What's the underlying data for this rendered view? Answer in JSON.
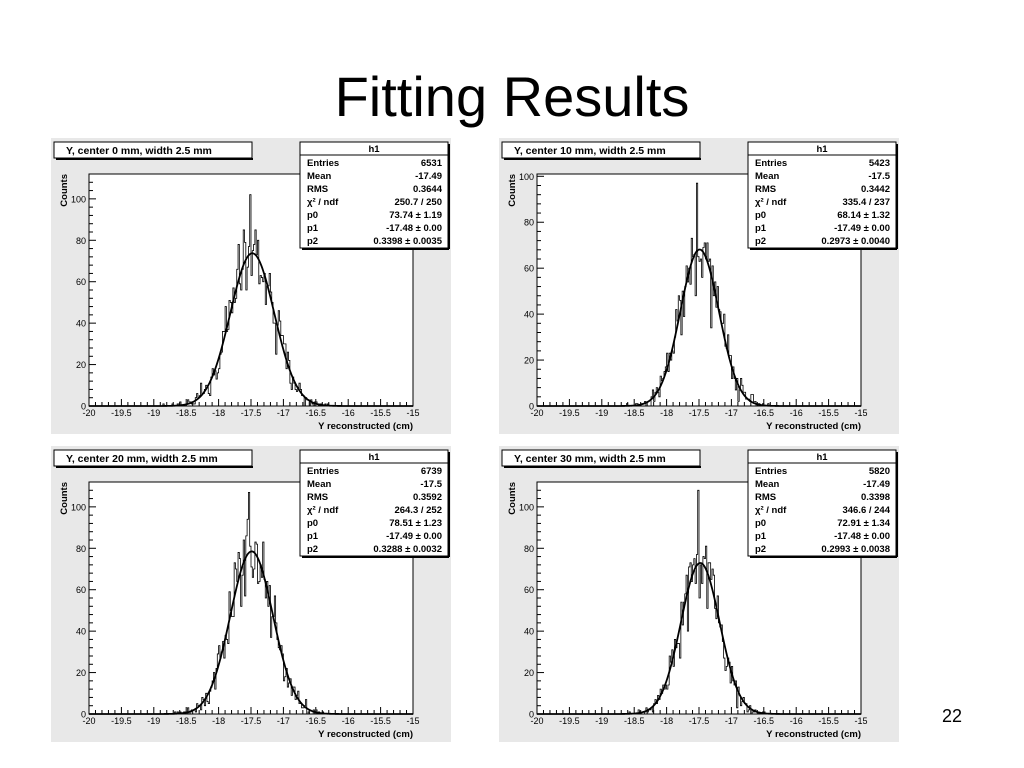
{
  "slide": {
    "title": "Fitting Results",
    "page_number": "22"
  },
  "colors": {
    "frame_background": "#e8e8e8",
    "plot_background": "#ffffff",
    "line": "#000000"
  },
  "chart_data": [
    {
      "type": "histogram",
      "title": "Y, center 0 mm, width 2.5 mm",
      "xlabel": "Y reconstructed (cm)",
      "ylabel": "Counts",
      "xlim": [
        -20,
        -15
      ],
      "ylim": [
        0,
        112
      ],
      "x_ticks": [
        -20,
        -19.5,
        -19,
        -18.5,
        -18,
        -17.5,
        -17,
        -16.5,
        -16,
        -15.5,
        -15
      ],
      "x_tick_labels": [
        "-20",
        "-19.5",
        "-19",
        "-18.5",
        "-18",
        "-17.5",
        "-17",
        "-16.5",
        "-16",
        "-15.5",
        "-15"
      ],
      "y_ticks": [
        0,
        20,
        40,
        60,
        80,
        100
      ],
      "y_tick_labels": [
        "0",
        "20",
        "40",
        "60",
        "80",
        "100"
      ],
      "stats_title": "h1",
      "stats": [
        {
          "label": "Entries",
          "value": "6531"
        },
        {
          "label": "Mean",
          "value": "-17.49"
        },
        {
          "label": "RMS",
          "value": "0.3644"
        },
        {
          "label": "χ² / ndf",
          "value": "250.7 / 250"
        },
        {
          "label": "p0",
          "value": "73.74 ± 1.19"
        },
        {
          "label": "p1",
          "value": "-17.48 ± 0.00"
        },
        {
          "label": "p2",
          "value": "0.3398 ± 0.0035"
        }
      ],
      "fit": {
        "function": "gaus",
        "constant": 73.74,
        "mean": -17.48,
        "sigma": 0.3398
      },
      "bins": {
        "x_min": -20,
        "x_max": -15,
        "count": 250
      },
      "peak_counts": 102
    },
    {
      "type": "histogram",
      "title": "Y, center 10 mm, width 2.5 mm",
      "xlabel": "Y reconstructed (cm)",
      "ylabel": "Counts",
      "xlim": [
        -20,
        -15
      ],
      "ylim": [
        0,
        101
      ],
      "x_ticks": [
        -20,
        -19.5,
        -19,
        -18.5,
        -18,
        -17.5,
        -17,
        -16.5,
        -16,
        -15.5,
        -15
      ],
      "x_tick_labels": [
        "-20",
        "-19.5",
        "-19",
        "-18.5",
        "-18",
        "-17.5",
        "-17",
        "-16.5",
        "-16",
        "-15.5",
        "-15"
      ],
      "y_ticks": [
        0,
        20,
        40,
        60,
        80,
        100
      ],
      "y_tick_labels": [
        "0",
        "20",
        "40",
        "60",
        "80",
        "100"
      ],
      "stats_title": "h1",
      "stats": [
        {
          "label": "Entries",
          "value": "5423"
        },
        {
          "label": "Mean",
          "value": "-17.5"
        },
        {
          "label": "RMS",
          "value": "0.3442"
        },
        {
          "label": "χ² / ndf",
          "value": "335.4 / 237"
        },
        {
          "label": "p0",
          "value": "68.14 ± 1.32"
        },
        {
          "label": "p1",
          "value": "-17.49 ± 0.00"
        },
        {
          "label": "p2",
          "value": "0.2973 ± 0.0040"
        }
      ],
      "fit": {
        "function": "gaus",
        "constant": 68.14,
        "mean": -17.49,
        "sigma": 0.2973
      },
      "bins": {
        "x_min": -20,
        "x_max": -15,
        "count": 250
      },
      "peak_counts": 97
    },
    {
      "type": "histogram",
      "title": "Y, center 20 mm, width 2.5 mm",
      "xlabel": "Y reconstructed (cm)",
      "ylabel": "Counts",
      "xlim": [
        -20,
        -15
      ],
      "ylim": [
        0,
        112
      ],
      "x_ticks": [
        -20,
        -19.5,
        -19,
        -18.5,
        -18,
        -17.5,
        -17,
        -16.5,
        -16,
        -15.5,
        -15
      ],
      "x_tick_labels": [
        "-20",
        "-19.5",
        "-19",
        "-18.5",
        "-18",
        "-17.5",
        "-17",
        "-16.5",
        "-16",
        "-15.5",
        "-15"
      ],
      "y_ticks": [
        0,
        20,
        40,
        60,
        80,
        100
      ],
      "y_tick_labels": [
        "0",
        "20",
        "40",
        "60",
        "80",
        "100"
      ],
      "stats_title": "h1",
      "stats": [
        {
          "label": "Entries",
          "value": "6739"
        },
        {
          "label": "Mean",
          "value": "-17.5"
        },
        {
          "label": "RMS",
          "value": "0.3592"
        },
        {
          "label": "χ² / ndf",
          "value": "264.3 / 252"
        },
        {
          "label": "p0",
          "value": "78.51 ± 1.23"
        },
        {
          "label": "p1",
          "value": "-17.49 ± 0.00"
        },
        {
          "label": "p2",
          "value": "0.3288 ± 0.0032"
        }
      ],
      "fit": {
        "function": "gaus",
        "constant": 78.51,
        "mean": -17.49,
        "sigma": 0.3288
      },
      "bins": {
        "x_min": -20,
        "x_max": -15,
        "count": 250
      },
      "peak_counts": 107
    },
    {
      "type": "histogram",
      "title": "Y, center 30 mm, width 2.5 mm",
      "xlabel": "Y reconstructed (cm)",
      "ylabel": "Counts",
      "xlim": [
        -20,
        -15
      ],
      "ylim": [
        0,
        112
      ],
      "x_ticks": [
        -20,
        -19.5,
        -19,
        -18.5,
        -18,
        -17.5,
        -17,
        -16.5,
        -16,
        -15.5,
        -15
      ],
      "x_tick_labels": [
        "-20",
        "-19.5",
        "-19",
        "-18.5",
        "-18",
        "-17.5",
        "-17",
        "-16.5",
        "-16",
        "-15.5",
        "-15"
      ],
      "y_ticks": [
        0,
        20,
        40,
        60,
        80,
        100
      ],
      "y_tick_labels": [
        "0",
        "20",
        "40",
        "60",
        "80",
        "100"
      ],
      "stats_title": "h1",
      "stats": [
        {
          "label": "Entries",
          "value": "5820"
        },
        {
          "label": "Mean",
          "value": "-17.49"
        },
        {
          "label": "RMS",
          "value": "0.3398"
        },
        {
          "label": "χ² / ndf",
          "value": "346.6 / 244"
        },
        {
          "label": "p0",
          "value": "72.91 ± 1.34"
        },
        {
          "label": "p1",
          "value": "-17.48 ± 0.00"
        },
        {
          "label": "p2",
          "value": "0.2993 ± 0.0038"
        }
      ],
      "fit": {
        "function": "gaus",
        "constant": 72.91,
        "mean": -17.48,
        "sigma": 0.2993
      },
      "bins": {
        "x_min": -20,
        "x_max": -15,
        "count": 250
      },
      "peak_counts": 108
    }
  ]
}
